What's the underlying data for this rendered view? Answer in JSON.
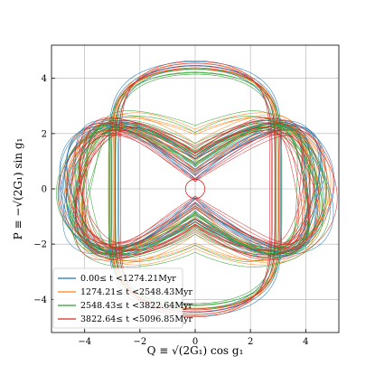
{
  "chart_data": {
    "type": "line",
    "title": "",
    "xlabel": "Q ≡ √(2G₁) cos g₁",
    "ylabel": "P ≡ −√(2G₁) sin g₁",
    "xlim": [
      -5.2,
      5.2
    ],
    "ylim": [
      -5.2,
      5.2
    ],
    "xticks": [
      -4,
      -2,
      0,
      2,
      4
    ],
    "yticks": [
      -4,
      -2,
      0,
      2,
      4
    ],
    "xtick_labels": [
      "−4",
      "−2",
      "0",
      "2",
      "4"
    ],
    "ytick_labels": [
      "−4",
      "−2",
      "0",
      "2",
      "4"
    ],
    "grid": true,
    "legend_position": "lower-left",
    "series": [
      {
        "name": "0.00≤ t <1274.21Myr",
        "color": "#1f77b4",
        "outer_radius": [
          4.3,
          4.75
        ],
        "waist": [
          0.25,
          1.2
        ]
      },
      {
        "name": "1274.21≤ t <2548.43Myr",
        "color": "#ff7f0e",
        "outer_radius": [
          4.2,
          4.65
        ],
        "waist": [
          0.3,
          2.2
        ]
      },
      {
        "name": "2548.43≤ t <3822.64Myr",
        "color": "#2ca02c",
        "outer_radius": [
          4.0,
          4.55
        ],
        "waist": [
          0.8,
          2.4
        ]
      },
      {
        "name": "3822.64≤ t <5096.85Myr",
        "color": "#d62728",
        "outer_radius": [
          3.8,
          4.75
        ],
        "waist": [
          0.2,
          1.6
        ]
      }
    ],
    "central_circle": {
      "center": [
        0,
        0
      ],
      "radius": 0.35,
      "color": "#d62728"
    }
  }
}
